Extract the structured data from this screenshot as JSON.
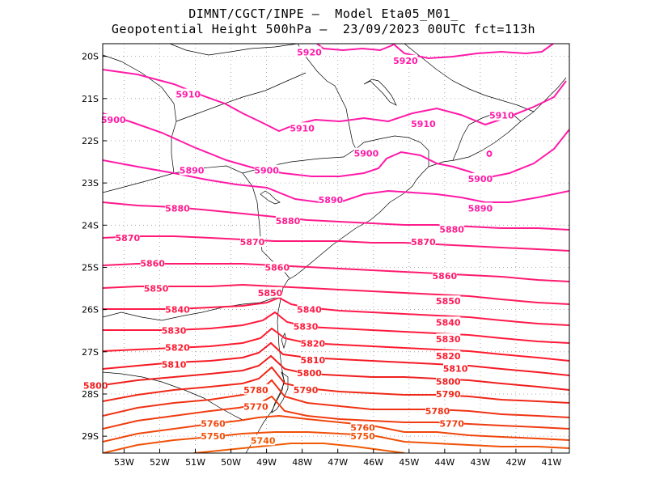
{
  "title_line1": "DIMNT/CGCT/INPE –  Model Eta05_M01_",
  "title_line2": "Geopotential Height 500hPa –  23/09/2023 00UTC fct=113h",
  "lon_labels": [
    "53W",
    "52W",
    "51W",
    "50W",
    "49W",
    "48W",
    "47W",
    "46W",
    "45W",
    "44W",
    "43W",
    "42W",
    "41W"
  ],
  "lat_labels": [
    "20S",
    "21S",
    "22S",
    "23S",
    "24S",
    "25S",
    "26S",
    "27S",
    "28S",
    "29S"
  ],
  "contour_labels": [
    {
      "text": "5920",
      "lon": -47.8,
      "lat": -19.9,
      "color": "#ff1aa8"
    },
    {
      "text": "5920",
      "lon": -45.1,
      "lat": -20.1,
      "color": "#ff1aa8"
    },
    {
      "text": "5910",
      "lon": -51.2,
      "lat": -20.9,
      "color": "#ff1aa8"
    },
    {
      "text": "5910",
      "lon": -48.0,
      "lat": -21.7,
      "color": "#ff1aa8"
    },
    {
      "text": "5910",
      "lon": -44.6,
      "lat": -21.6,
      "color": "#ff1aa8"
    },
    {
      "text": "5910",
      "lon": -42.4,
      "lat": -21.4,
      "color": "#ff1aa8"
    },
    {
      "text": "5900",
      "lon": -53.3,
      "lat": -21.5,
      "color": "#ff1aa8"
    },
    {
      "text": "5900",
      "lon": -46.2,
      "lat": -22.3,
      "color": "#ff1aa8"
    },
    {
      "text": "5900",
      "lon": -49.0,
      "lat": -22.7,
      "color": "#ff1aa8"
    },
    {
      "text": "5900",
      "lon": -43.0,
      "lat": -22.9,
      "color": "#ff1aa8"
    },
    {
      "text": "5890",
      "lon": -51.1,
      "lat": -22.7,
      "color": "#ff1aa8"
    },
    {
      "text": "5890",
      "lon": -47.2,
      "lat": -23.4,
      "color": "#ff1aa8"
    },
    {
      "text": "5890",
      "lon": -43.0,
      "lat": -23.6,
      "color": "#ff1aa8"
    },
    {
      "text": "5880",
      "lon": -51.5,
      "lat": -23.6,
      "color": "#ff1a8c"
    },
    {
      "text": "5880",
      "lon": -48.4,
      "lat": -23.9,
      "color": "#ff1a8c"
    },
    {
      "text": "5880",
      "lon": -43.8,
      "lat": -24.1,
      "color": "#ff1a8c"
    },
    {
      "text": "5870",
      "lon": -52.9,
      "lat": -24.3,
      "color": "#ff1a7a"
    },
    {
      "text": "5870",
      "lon": -49.4,
      "lat": -24.4,
      "color": "#ff1a7a"
    },
    {
      "text": "5870",
      "lon": -44.6,
      "lat": -24.4,
      "color": "#ff1a7a"
    },
    {
      "text": "5860",
      "lon": -52.2,
      "lat": -24.9,
      "color": "#ff1a6e"
    },
    {
      "text": "5860",
      "lon": -48.7,
      "lat": -25.0,
      "color": "#ff1a6e"
    },
    {
      "text": "5860",
      "lon": -44.0,
      "lat": -25.2,
      "color": "#ff1a6e"
    },
    {
      "text": "5850",
      "lon": -52.1,
      "lat": -25.5,
      "color": "#ff1a5c"
    },
    {
      "text": "5850",
      "lon": -48.9,
      "lat": -25.6,
      "color": "#ff1a5c"
    },
    {
      "text": "5850",
      "lon": -43.9,
      "lat": -25.8,
      "color": "#ff1a5c"
    },
    {
      "text": "5840",
      "lon": -51.5,
      "lat": -26.0,
      "color": "#ff1a4a"
    },
    {
      "text": "5840",
      "lon": -47.8,
      "lat": -26.0,
      "color": "#ff1a4a"
    },
    {
      "text": "5840",
      "lon": -43.9,
      "lat": -26.3,
      "color": "#ff1a4a"
    },
    {
      "text": "5830",
      "lon": -51.6,
      "lat": -26.5,
      "color": "#ff1a3c"
    },
    {
      "text": "5830",
      "lon": -47.9,
      "lat": -26.4,
      "color": "#ff1a3c"
    },
    {
      "text": "5830",
      "lon": -43.9,
      "lat": -26.7,
      "color": "#ff1a3c"
    },
    {
      "text": "5820",
      "lon": -51.5,
      "lat": -26.9,
      "color": "#ff1a2e"
    },
    {
      "text": "5820",
      "lon": -47.7,
      "lat": -26.8,
      "color": "#ff1a2e"
    },
    {
      "text": "5820",
      "lon": -43.9,
      "lat": -27.1,
      "color": "#ff1a2e"
    },
    {
      "text": "5810",
      "lon": -51.6,
      "lat": -27.3,
      "color": "#f51a24"
    },
    {
      "text": "5810",
      "lon": -47.7,
      "lat": -27.2,
      "color": "#f51a24"
    },
    {
      "text": "5810",
      "lon": -43.7,
      "lat": -27.4,
      "color": "#f51a24"
    },
    {
      "text": "5800",
      "lon": -53.8,
      "lat": -27.8,
      "color": "#f01e1e"
    },
    {
      "text": "5800",
      "lon": -47.8,
      "lat": -27.5,
      "color": "#f01e1e"
    },
    {
      "text": "5800",
      "lon": -43.9,
      "lat": -27.7,
      "color": "#f01e1e"
    },
    {
      "text": "5790",
      "lon": -47.9,
      "lat": -27.9,
      "color": "#f02818"
    },
    {
      "text": "5790",
      "lon": -43.9,
      "lat": -28.0,
      "color": "#f02818"
    },
    {
      "text": "5780",
      "lon": -49.3,
      "lat": -27.9,
      "color": "#f03214"
    },
    {
      "text": "5780",
      "lon": -44.2,
      "lat": -28.4,
      "color": "#f03214"
    },
    {
      "text": "5770",
      "lon": -49.3,
      "lat": -28.3,
      "color": "#f03c10"
    },
    {
      "text": "5770",
      "lon": -43.8,
      "lat": -28.7,
      "color": "#f03c10"
    },
    {
      "text": "5760",
      "lon": -50.5,
      "lat": -28.7,
      "color": "#f0460c"
    },
    {
      "text": "5760",
      "lon": -46.3,
      "lat": -28.8,
      "color": "#f0460c"
    },
    {
      "text": "5750",
      "lon": -50.5,
      "lat": -29.0,
      "color": "#f05008"
    },
    {
      "text": "5750",
      "lon": -46.3,
      "lat": -29.0,
      "color": "#f05008"
    },
    {
      "text": "5740",
      "lon": -49.1,
      "lat": -29.1,
      "color": "#f05a04"
    }
  ]
}
